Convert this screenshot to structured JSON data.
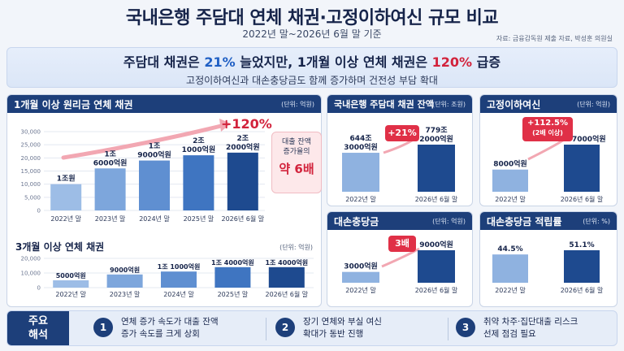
{
  "header": {
    "title": "국내은행 주담대 연체 채권·고정이하여신 규모 비교",
    "subtitle": "2022년 말~2026년 6월 말 기준",
    "source": "자료: 금융감독원 제출 자료, 박성훈 의원실"
  },
  "banner": {
    "line1_pre": "주담대 채권은 ",
    "line1_blue": "21%",
    "line1_mid": " 늘었지만, 1개월 이상 연체 채권은 ",
    "line1_red": "120%",
    "line1_post": " 급증",
    "line2": "고정이하여신과 대손충당금도 함께 증가하며 건전성 부담 확대"
  },
  "chart_data": [
    {
      "id": "overdue_1m",
      "type": "bar",
      "title": "1개월 이상 원리금 연체 채권",
      "unit": "(단위: 억원)",
      "categories": [
        "2022년 말",
        "2023년 말",
        "2024년 말",
        "2025년 말",
        "2026년 6월 말"
      ],
      "values": [
        10000,
        16000,
        19000,
        21000,
        22000
      ],
      "value_labels": [
        [
          "1조원"
        ],
        [
          "1조",
          "6000억원"
        ],
        [
          "1조",
          "9000억원"
        ],
        [
          "2조",
          "1000억원"
        ],
        [
          "2조",
          "2000억원"
        ]
      ],
      "ylim": [
        0,
        30000
      ],
      "yticks": [
        "0",
        "5,000",
        "10,000",
        "15,000",
        "20,000",
        "25,000",
        "30,000"
      ],
      "annotation": "+120%",
      "callout": [
        "대출 잔액",
        "증가율의",
        "약 6배"
      ]
    },
    {
      "id": "overdue_3m",
      "type": "bar",
      "title": "3개월 이상 연체 채권",
      "unit": "(단위: 억원)",
      "categories": [
        "2022년 말",
        "2023년 말",
        "2024년 말",
        "2025년 말",
        "2026년 6월 말"
      ],
      "values": [
        5000,
        9000,
        11000,
        14000,
        14000
      ],
      "value_labels": [
        "5000억원",
        "9000억원",
        "1조 1000억원",
        "1조 4000억원",
        "1조 4000억원"
      ],
      "ylim": [
        0,
        20000
      ],
      "yticks": [
        "0",
        "10,000",
        "20,000"
      ]
    },
    {
      "id": "mortgage_balance",
      "type": "bar",
      "title": "국내은행 주담대 채권 잔액",
      "unit": "(단위: 조원)",
      "categories": [
        "2022년 말",
        "2026년 6월 말"
      ],
      "values": [
        644.3,
        779.2
      ],
      "value_labels": [
        [
          "644조",
          "3000억원"
        ],
        [
          "779조",
          "2000억원"
        ]
      ],
      "badge": "+21%"
    },
    {
      "id": "substandard_loans",
      "type": "bar",
      "title": "고정이하여신",
      "unit": "(단위: 억원)",
      "categories": [
        "2022년 말",
        "2026년 6월 말"
      ],
      "values": [
        8000,
        17000
      ],
      "value_labels": [
        "8000억원",
        "1조 7000억원"
      ],
      "badge": "+112.5%",
      "badge_note": "(2배 이상)"
    },
    {
      "id": "loan_loss_reserve",
      "type": "bar",
      "title": "대손충당금",
      "unit": "(단위: 억원)",
      "categories": [
        "2022년 말",
        "2026년 6월 말"
      ],
      "values": [
        3000,
        9000
      ],
      "value_labels": [
        "3000억원",
        "9000억원"
      ],
      "badge": "3배"
    },
    {
      "id": "reserve_ratio",
      "type": "bar",
      "title": "대손충당금 적립률",
      "unit": "(단위: %)",
      "categories": [
        "2022년 말",
        "2026년 6월 말"
      ],
      "values": [
        44.5,
        51.1
      ],
      "value_labels": [
        "44.5%",
        "51.1%"
      ]
    }
  ],
  "footer": {
    "label_1": "주요",
    "label_2": "해석",
    "items": [
      {
        "num": "1",
        "l1": "연체 증가 속도가 대출 잔액",
        "l2": "증가 속도를 크게 상회"
      },
      {
        "num": "2",
        "l1": "장기 연체와 부실 여신",
        "l2": "확대가 동반 진행"
      },
      {
        "num": "3",
        "l1": "취약 차주·집단대출 리스크",
        "l2": "선제 점검 필요"
      }
    ]
  },
  "colors": {
    "navy": "#1d3f7a",
    "bar_light": "#8fb2e0",
    "bar_dark": "#1e4a8f",
    "accent_red": "#d2233c",
    "accent_blue": "#1f5fc4"
  }
}
